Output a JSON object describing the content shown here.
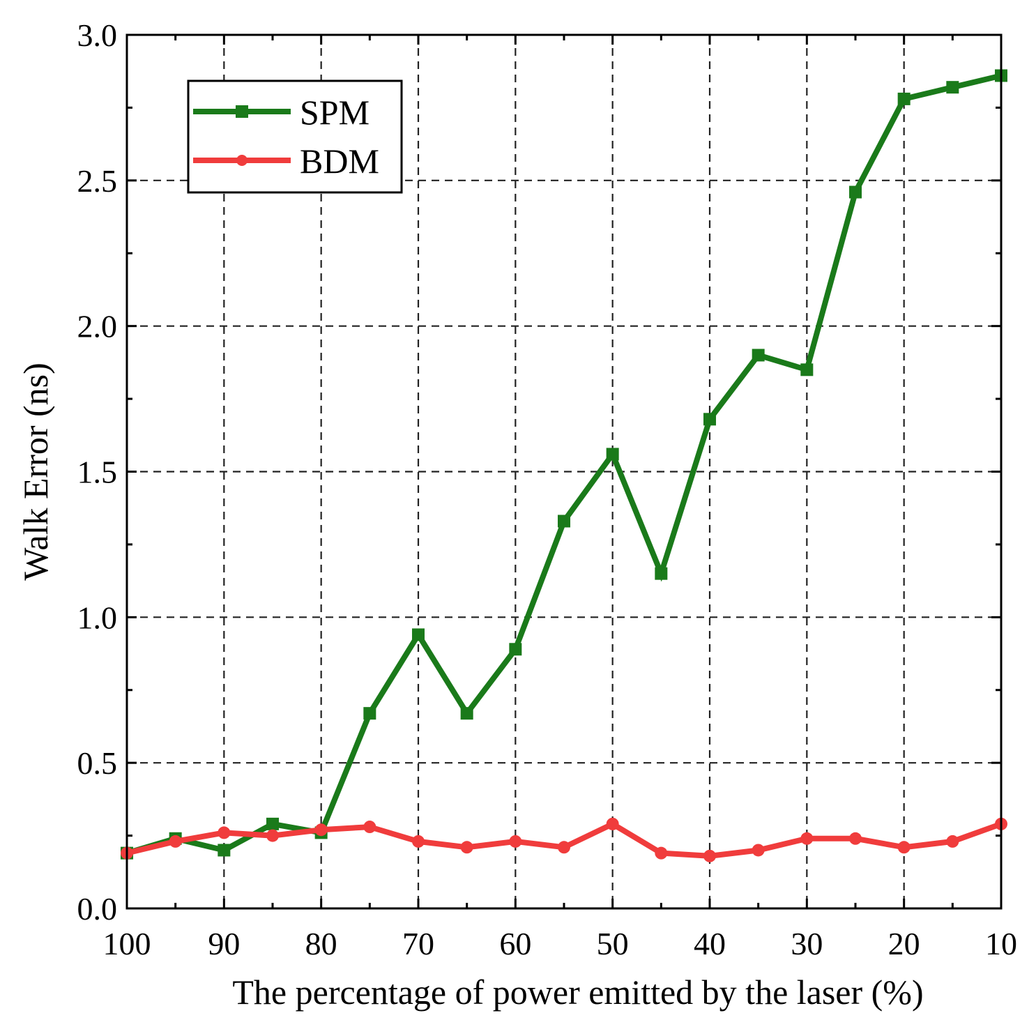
{
  "chart_data": {
    "type": "line",
    "title": "",
    "xlabel": "The percentage of power emitted by the laser (%)",
    "ylabel": "Walk Error (ns)",
    "x": [
      100,
      95,
      90,
      85,
      80,
      75,
      70,
      65,
      60,
      55,
      50,
      45,
      40,
      35,
      30,
      25,
      20,
      15,
      10
    ],
    "xlim": [
      100,
      10
    ],
    "ylim": [
      0.0,
      3.0
    ],
    "x_ticks": [
      100,
      90,
      80,
      70,
      60,
      50,
      40,
      30,
      20,
      10
    ],
    "x_tick_labels": [
      "100",
      "90",
      "80",
      "70",
      "60",
      "50",
      "40",
      "30",
      "20",
      "10"
    ],
    "y_ticks": [
      0.0,
      0.5,
      1.0,
      1.5,
      2.0,
      2.5,
      3.0
    ],
    "y_tick_labels": [
      "0.0",
      "0.5",
      "1.0",
      "1.5",
      "2.0",
      "2.5",
      "3.0"
    ],
    "grid": true,
    "legend_position": "top-left",
    "series": [
      {
        "name": "SPM",
        "color": "#1a7a1a",
        "marker": "square",
        "values": [
          0.19,
          0.24,
          0.2,
          0.29,
          0.26,
          0.67,
          0.94,
          0.67,
          0.89,
          1.33,
          1.56,
          1.15,
          1.68,
          1.9,
          1.85,
          2.46,
          2.78,
          2.82,
          2.86
        ]
      },
      {
        "name": "BDM",
        "color": "#f03c3c",
        "marker": "circle",
        "values": [
          0.19,
          0.23,
          0.26,
          0.25,
          0.27,
          0.28,
          0.23,
          0.21,
          0.23,
          0.21,
          0.29,
          0.19,
          0.18,
          0.2,
          0.24,
          0.24,
          0.21,
          0.23,
          0.29
        ]
      }
    ]
  }
}
